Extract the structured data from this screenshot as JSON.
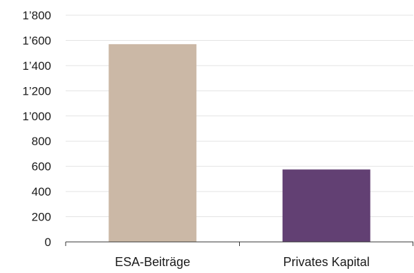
{
  "chart_data": {
    "type": "bar",
    "title": "",
    "xlabel": "",
    "ylabel": "",
    "categories": [
      "ESA-Beiträge",
      "Privates Kapital"
    ],
    "values": [
      1570,
      575
    ],
    "colors": [
      "#cbb8a6",
      "#624073"
    ],
    "ylim": [
      0,
      1800
    ],
    "yticks": [
      0,
      200,
      400,
      600,
      800,
      1000,
      1200,
      1400,
      1600,
      1800
    ],
    "ytick_labels": [
      "0",
      "200",
      "400",
      "600",
      "800",
      "1’000",
      "1’200",
      "1’400",
      "1’600",
      "1’800"
    ],
    "grid": true,
    "gridline_color": "#e3e3e3",
    "axis_color": "#333333",
    "legend": "none"
  }
}
